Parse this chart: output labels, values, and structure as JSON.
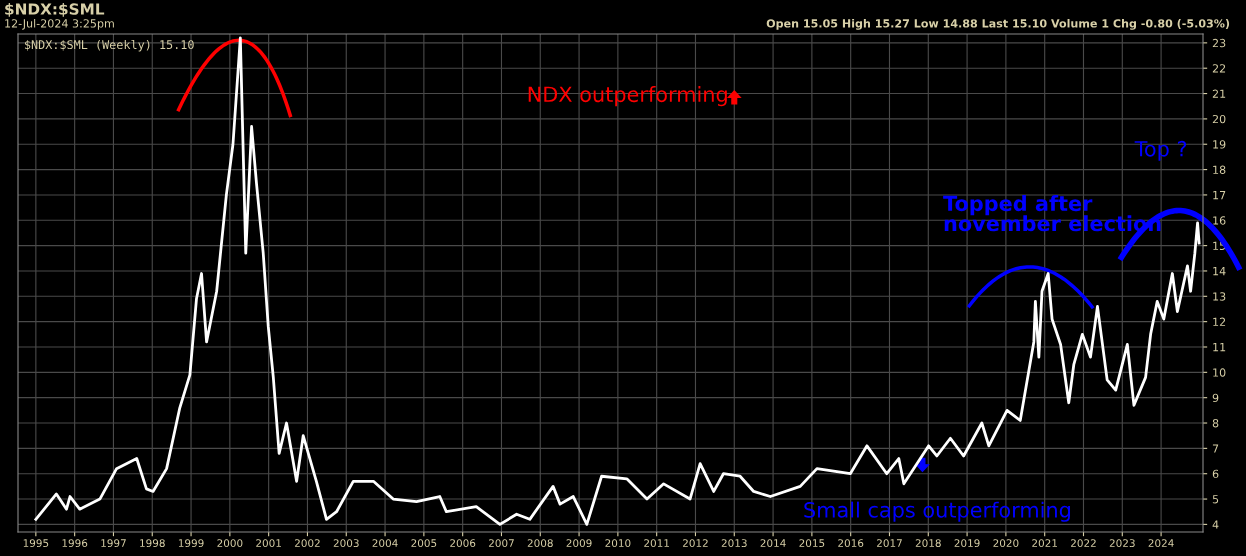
{
  "chart_data": {
    "type": "line",
    "title": "$NDX:$SML",
    "annotations": [
      "12-Jul-2024 3:25pm",
      "Open 15.05 High 15.27 Low 14.88 Last 15.10 Volume 1 Chg -0.80 (-5.03%)",
      "NDX outperforming",
      "Topped after\nnovember election",
      "Top ?",
      "Small caps outperforming"
    ],
    "series": [
      {
        "name": "$NDX:$SML (Weekly) 15.10",
        "color": "#ffffff",
        "x": [
          1995.0,
          1995.53,
          1995.79,
          1995.88,
          1996.13,
          1996.65,
          1997.08,
          1997.6,
          1997.85,
          1998.02,
          1998.37,
          1998.71,
          1998.97,
          1999.14,
          1999.27,
          1999.4,
          1999.66,
          1999.91,
          2000.08,
          2000.27,
          2000.41,
          2000.56,
          2000.69,
          2000.86,
          2000.99,
          2001.12,
          2001.27,
          2001.46,
          2001.72,
          2001.89,
          2002.23,
          2002.49,
          2002.75,
          2003.18,
          2003.7,
          2004.21,
          2004.81,
          2005.41,
          2005.58,
          2006.35,
          2006.96,
          2007.39,
          2007.73,
          2008.33,
          2008.51,
          2008.85,
          2009.2,
          2009.58,
          2010.23,
          2010.75,
          2011.18,
          2011.86,
          2012.12,
          2012.47,
          2012.72,
          2013.15,
          2013.5,
          2013.93,
          2014.7,
          2015.13,
          2015.99,
          2016.42,
          2016.93,
          2017.24,
          2017.37,
          2018.01,
          2018.22,
          2018.57,
          2018.91,
          2019.38,
          2019.56,
          2020.03,
          2020.37,
          2020.46,
          2020.72,
          2020.76,
          2020.85,
          2020.93,
          2021.09,
          2021.19,
          2021.41,
          2021.62,
          2021.75,
          2021.97,
          2022.18,
          2022.36,
          2022.61,
          2022.83,
          2023.13,
          2023.3,
          2023.6,
          2023.73,
          2023.9,
          2024.07,
          2024.29,
          2024.42,
          2024.68,
          2024.76,
          2024.87,
          2024.94,
          2024.98
        ],
        "values": [
          4.2,
          5.2,
          4.6,
          5.1,
          4.6,
          5.0,
          6.2,
          6.6,
          5.4,
          5.3,
          6.2,
          8.6,
          9.9,
          12.9,
          13.9,
          11.2,
          13.2,
          17.0,
          19.0,
          23.2,
          14.7,
          19.7,
          17.4,
          14.7,
          11.8,
          9.8,
          6.8,
          8.0,
          5.7,
          7.5,
          5.7,
          4.2,
          4.5,
          5.7,
          5.7,
          5.0,
          4.9,
          5.1,
          4.5,
          4.7,
          4.0,
          4.4,
          4.2,
          5.5,
          4.8,
          5.1,
          4.0,
          5.9,
          5.8,
          5.0,
          5.6,
          5.0,
          6.4,
          5.3,
          6.0,
          5.9,
          5.3,
          5.1,
          5.5,
          6.2,
          6.0,
          7.1,
          6.0,
          6.6,
          5.6,
          7.1,
          6.7,
          7.4,
          6.7,
          8.0,
          7.1,
          8.5,
          8.1,
          8.9,
          11.2,
          12.8,
          10.6,
          13.2,
          13.9,
          12.1,
          11.1,
          8.8,
          10.3,
          11.5,
          10.6,
          12.6,
          9.7,
          9.3,
          11.1,
          8.7,
          9.8,
          11.5,
          12.8,
          12.1,
          13.9,
          12.4,
          14.2,
          13.2,
          14.7,
          15.9,
          15.1
        ]
      }
    ],
    "xlim": [
      1994.54,
      2025.08
    ],
    "ylim": [
      3.7,
      23.35
    ],
    "xticks": [
      1995,
      1996,
      1997,
      1998,
      1999,
      2000,
      2001,
      2002,
      2003,
      2004,
      2005,
      2006,
      2007,
      2008,
      2009,
      2010,
      2011,
      2012,
      2013,
      2014,
      2015,
      2016,
      2017,
      2018,
      2019,
      2020,
      2021,
      2022,
      2023,
      2024
    ],
    "yticks": [
      4,
      5,
      6,
      7,
      8,
      9,
      10,
      11,
      12,
      13,
      14,
      15,
      16,
      17,
      18,
      19,
      20,
      21,
      22,
      23
    ],
    "grid": true,
    "legend": "top left"
  }
}
